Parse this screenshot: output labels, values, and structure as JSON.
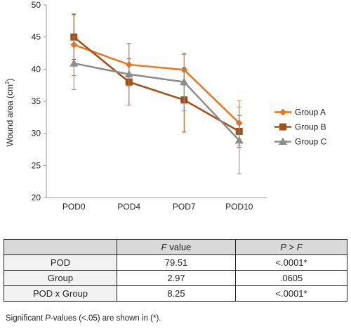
{
  "chart_data": {
    "type": "line",
    "title": "",
    "xlabel": "",
    "ylabel": "Wound area (cm²)",
    "ylabel_main": "Wound area (cm",
    "ylabel_sup": "2",
    "ylabel_end": ")",
    "ylim": [
      20,
      50
    ],
    "yticks": [
      20,
      25,
      30,
      35,
      40,
      45,
      50
    ],
    "categories": [
      "POD0",
      "POD4",
      "POD7",
      "POD10"
    ],
    "legend_position": "right",
    "grid": false,
    "series": [
      {
        "name": "Group A",
        "color": "#e8761c",
        "marker": "diamond",
        "values": [
          43.8,
          40.7,
          39.9,
          31.6
        ],
        "errors": [
          4.8,
          3.3,
          2.4,
          3.5
        ]
      },
      {
        "name": "Group B",
        "color": "#a34e12",
        "marker": "square",
        "values": [
          45.0,
          38.0,
          35.2,
          30.3
        ],
        "errors": [
          3.5,
          3.6,
          5.0,
          2.5
        ]
      },
      {
        "name": "Group C",
        "color": "#8c8c8c",
        "marker": "triangle",
        "values": [
          40.9,
          39.2,
          38.0,
          28.9
        ],
        "errors": [
          4.1,
          4.8,
          4.5,
          5.2
        ]
      }
    ]
  },
  "table": {
    "header_blank": "",
    "header_f_italic": "F",
    "header_f_rest": " value",
    "header_p_italic1": "P",
    "header_p_mid": " > ",
    "header_p_italic2": "F",
    "rows": [
      {
        "label": "POD",
        "f": "79.51",
        "p": "<.0001*"
      },
      {
        "label": "Group",
        "f": "2.97",
        "p": ".0605"
      },
      {
        "label": "POD x Group",
        "f": "8.25",
        "p": "<.0001*"
      }
    ]
  },
  "footnote": {
    "pre": "Significant ",
    "italic": "P",
    "post": "-values (<.05) are shown in (*)."
  }
}
